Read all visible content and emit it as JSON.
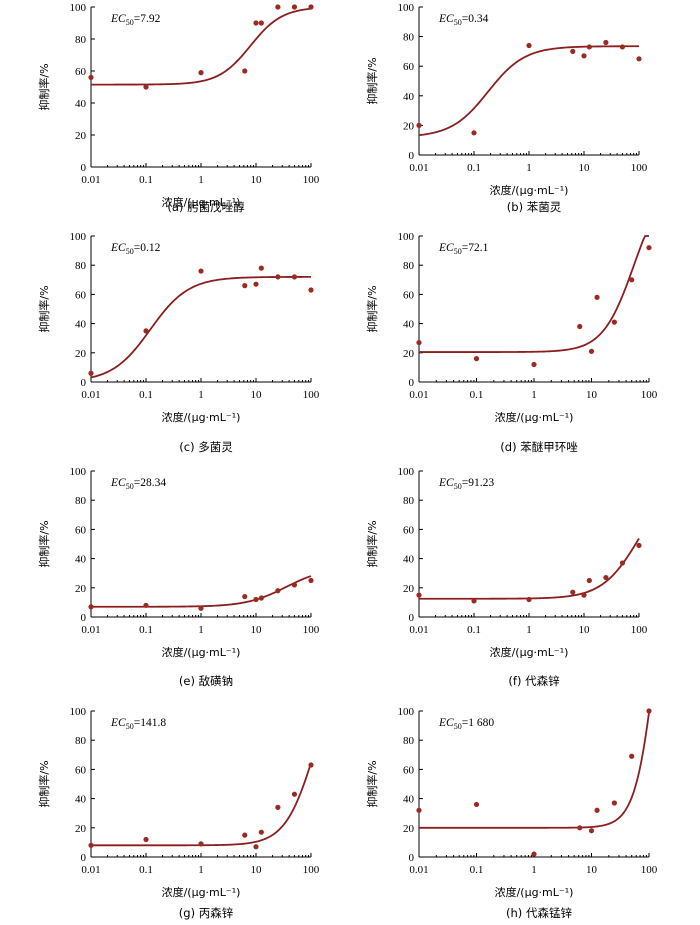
{
  "chart_data": [
    {
      "type": "scatter",
      "panel": "a",
      "caption": "(a)  肟菌戊唑醇",
      "ec50_value": "7.92",
      "xlabel": "浓度/(μg·mL⁻¹)",
      "ylabel": "抑制率/%",
      "xscale": "log",
      "xlim": [
        0.01,
        100
      ],
      "ylim": [
        0,
        100
      ],
      "xticks": [
        "0.01",
        "0.1",
        "1",
        "10",
        "100"
      ],
      "yticks": [
        "0",
        "20",
        "40",
        "60",
        "80",
        "100"
      ],
      "points": [
        [
          0.01,
          56
        ],
        [
          0.1,
          50
        ],
        [
          1,
          59
        ],
        [
          6.25,
          60
        ],
        [
          10,
          90
        ],
        [
          12.5,
          90
        ],
        [
          25,
          100
        ],
        [
          50,
          100
        ],
        [
          100,
          100
        ]
      ],
      "fit": {
        "bottom": 51.5,
        "top": 100,
        "ec": 7.92,
        "hill": 1.5
      }
    },
    {
      "type": "scatter",
      "panel": "b",
      "caption": "(b)  苯菌灵",
      "ec50_value": "0.34",
      "xlabel": "浓度/(μg·mL⁻¹)",
      "ylabel": "抑制率/%",
      "xscale": "log",
      "xlim": [
        0.01,
        100
      ],
      "ylim": [
        0,
        100
      ],
      "xticks": [
        "0.01",
        "0.1",
        "1",
        "10",
        "100"
      ],
      "yticks": [
        "0",
        "20",
        "40",
        "60",
        "80",
        "100"
      ],
      "points": [
        [
          0.01,
          20
        ],
        [
          0.1,
          15
        ],
        [
          1,
          74
        ],
        [
          6.25,
          70
        ],
        [
          10,
          67
        ],
        [
          12.5,
          73
        ],
        [
          25,
          76
        ],
        [
          50,
          73
        ],
        [
          100,
          65
        ]
      ],
      "fit": {
        "bottom": 12,
        "top": 73.5,
        "ec": 0.18,
        "hill": 1.3
      }
    },
    {
      "type": "scatter",
      "panel": "c",
      "caption": "(c)  多菌灵",
      "ec50_value": "0.12",
      "xlabel": "浓度/(μg·mL⁻¹)",
      "ylabel": "抑制率/%",
      "xscale": "log",
      "xlim": [
        0.01,
        100
      ],
      "ylim": [
        0,
        100
      ],
      "xticks": [
        "0.01",
        "0.1",
        "1",
        "10",
        "100"
      ],
      "yticks": [
        "0",
        "20",
        "40",
        "60",
        "80",
        "100"
      ],
      "points": [
        [
          0.01,
          6
        ],
        [
          0.1,
          35
        ],
        [
          1,
          76
        ],
        [
          6.25,
          66
        ],
        [
          10,
          67
        ],
        [
          12.5,
          78
        ],
        [
          25,
          72
        ],
        [
          50,
          72
        ],
        [
          100,
          63
        ]
      ],
      "fit": {
        "bottom": 0,
        "top": 72,
        "ec": 0.12,
        "hill": 1.25
      }
    },
    {
      "type": "scatter",
      "panel": "d",
      "caption": "(d)  苯醚甲环唑",
      "ec50_value": "72.1",
      "xlabel": "浓度/(μg·mL⁻¹)",
      "ylabel": "抑制率/%",
      "xscale": "log",
      "xlim": [
        0.01,
        100
      ],
      "ylim": [
        0,
        100
      ],
      "xticks": [
        "0.01",
        "0.1",
        "1",
        "10",
        "100"
      ],
      "yticks": [
        "0",
        "20",
        "40",
        "60",
        "80",
        "100"
      ],
      "points": [
        [
          0.01,
          27
        ],
        [
          0.1,
          16
        ],
        [
          1,
          12
        ],
        [
          6.25,
          38
        ],
        [
          10,
          21
        ],
        [
          12.5,
          58
        ],
        [
          25,
          41
        ],
        [
          50,
          70
        ],
        [
          100,
          92
        ]
      ],
      "fit": {
        "bottom": 20.5,
        "top": 140,
        "ec": 55,
        "hill": 1.6
      }
    },
    {
      "type": "scatter",
      "panel": "e",
      "caption": "(e)  敌磺钠",
      "ec50_value": "28.34",
      "xlabel": "浓度/(μg·mL⁻¹)",
      "ylabel": "抑制率/%",
      "xscale": "log",
      "xlim": [
        0.01,
        100
      ],
      "ylim": [
        0,
        100
      ],
      "xticks": [
        "0.01",
        "0.1",
        "1",
        "10",
        "100"
      ],
      "yticks": [
        "0",
        "20",
        "40",
        "60",
        "80",
        "100"
      ],
      "points": [
        [
          0.01,
          7
        ],
        [
          0.1,
          8
        ],
        [
          1,
          6
        ],
        [
          6.25,
          14
        ],
        [
          10,
          12
        ],
        [
          12.5,
          13
        ],
        [
          25,
          18
        ],
        [
          50,
          22
        ],
        [
          100,
          25
        ]
      ],
      "fit": {
        "bottom": 7,
        "top": 34,
        "ec": 35,
        "hill": 1.2
      }
    },
    {
      "type": "scatter",
      "panel": "f",
      "caption": "(f)  代森锌",
      "ec50_value": "91.23",
      "xlabel": "浓度/(μg·mL⁻¹)",
      "ylabel": "抑制率/%",
      "xscale": "log",
      "xlim": [
        0.01,
        100
      ],
      "ylim": [
        0,
        100
      ],
      "xticks": [
        "0.01",
        "0.1",
        "1",
        "10",
        "100"
      ],
      "yticks": [
        "0",
        "20",
        "40",
        "60",
        "80",
        "100"
      ],
      "points": [
        [
          0.01,
          15
        ],
        [
          0.1,
          11
        ],
        [
          1,
          12
        ],
        [
          6.25,
          17
        ],
        [
          10,
          15
        ],
        [
          12.5,
          25
        ],
        [
          25,
          27
        ],
        [
          50,
          37
        ],
        [
          100,
          49
        ]
      ],
      "fit": {
        "bottom": 12.5,
        "top": 95,
        "ec": 100,
        "hill": 1.3
      }
    },
    {
      "type": "scatter",
      "panel": "g",
      "caption": "(g)  丙森锌",
      "ec50_value": "141.8",
      "xlabel": "浓度/(μg·mL⁻¹)",
      "ylabel": "抑制率/%",
      "xscale": "log",
      "xlim": [
        0.01,
        100
      ],
      "ylim": [
        0,
        100
      ],
      "xticks": [
        "0.01",
        "0.1",
        "1",
        "10",
        "100"
      ],
      "yticks": [
        "0",
        "20",
        "40",
        "60",
        "80",
        "100"
      ],
      "points": [
        [
          0.01,
          8
        ],
        [
          0.1,
          12
        ],
        [
          1,
          9
        ],
        [
          6.25,
          15
        ],
        [
          10,
          7
        ],
        [
          12.5,
          17
        ],
        [
          25,
          34
        ],
        [
          50,
          43
        ],
        [
          100,
          63
        ]
      ],
      "fit": {
        "bottom": 8,
        "top": 140,
        "ec": 120,
        "hill": 1.6
      }
    },
    {
      "type": "scatter",
      "panel": "h",
      "caption": "(h)  代森锰锌",
      "ec50_value": "1 680",
      "xlabel": "浓度/(μg·mL⁻¹)",
      "ylabel": "抑制率/%",
      "xscale": "log",
      "xlim": [
        0.01,
        100
      ],
      "ylim": [
        0,
        100
      ],
      "xticks": [
        "0.01",
        "0.1",
        "1",
        "10",
        "100"
      ],
      "yticks": [
        "0",
        "20",
        "40",
        "60",
        "80",
        "100"
      ],
      "points": [
        [
          0.01,
          32
        ],
        [
          0.1,
          36
        ],
        [
          1,
          2
        ],
        [
          6.25,
          20
        ],
        [
          10,
          18
        ],
        [
          12.5,
          32
        ],
        [
          25,
          37
        ],
        [
          50,
          69
        ],
        [
          100,
          100
        ]
      ],
      "fit": {
        "bottom": 20,
        "top": 300,
        "ec": 150,
        "hill": 2.3
      }
    }
  ]
}
